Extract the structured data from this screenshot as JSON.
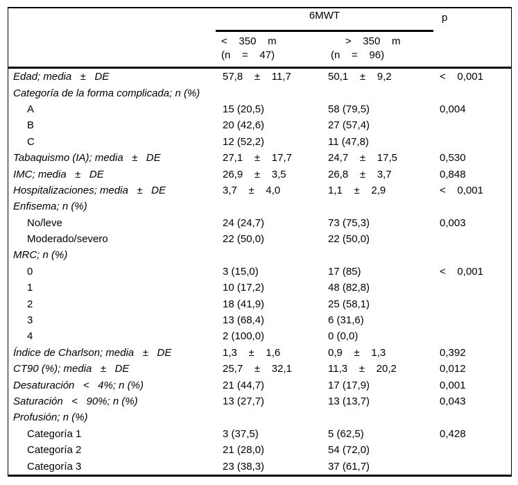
{
  "table": {
    "header": {
      "group_label": "6MWT",
      "p_label": "p",
      "col1": "<    350    m\n(n    =    47)",
      "col2": "     >    350    m\n(n    =    96)"
    },
    "rows": [
      {
        "label": "Edad; media   ±   DE",
        "sub": false,
        "col1": "57,8    ±    11,7",
        "col2": "50,1    ±    9,2",
        "p": "<    0,001"
      },
      {
        "label": "Categoría de la forma complicada; n (%)",
        "sub": false,
        "col1": "",
        "col2": "",
        "p": ""
      },
      {
        "label": "A",
        "sub": true,
        "col1": "15 (20,5)",
        "col2": "58 (79,5)",
        "p": "0,004"
      },
      {
        "label": "B",
        "sub": true,
        "col1": "20 (42,6)",
        "col2": "27 (57,4)",
        "p": ""
      },
      {
        "label": "C",
        "sub": true,
        "col1": "12 (52,2)",
        "col2": "11 (47,8)",
        "p": ""
      },
      {
        "label": "Tabaquismo (IA); media   ±   DE",
        "sub": false,
        "col1": "27,1    ±    17,7",
        "col2": "24,7    ±    17,5",
        "p": "0,530"
      },
      {
        "label": "IMC; media   ±   DE",
        "sub": false,
        "col1": "26,9    ±    3,5",
        "col2": "26,8    ±    3,7",
        "p": "0,848"
      },
      {
        "label": "Hospitalizaciones; media   ±   DE",
        "sub": false,
        "col1": "3,7    ±    4,0",
        "col2": "1,1    ±    2,9",
        "p": "<    0,001"
      },
      {
        "label": "Enfisema; n (%)",
        "sub": false,
        "col1": "",
        "col2": "",
        "p": ""
      },
      {
        "label": "No/leve",
        "sub": true,
        "col1": "24 (24,7)",
        "col2": "73 (75,3)",
        "p": "0,003"
      },
      {
        "label": "Moderado/severo",
        "sub": true,
        "col1": "22 (50,0)",
        "col2": "22 (50,0)",
        "p": ""
      },
      {
        "label": "MRC; n (%)",
        "sub": false,
        "col1": "",
        "col2": "",
        "p": ""
      },
      {
        "label": "0",
        "sub": true,
        "col1": "3 (15,0)",
        "col2": "17 (85)",
        "p": "<    0,001"
      },
      {
        "label": "1",
        "sub": true,
        "col1": "10 (17,2)",
        "col2": "48 (82,8)",
        "p": ""
      },
      {
        "label": "2",
        "sub": true,
        "col1": "18 (41,9)",
        "col2": "25 (58,1)",
        "p": ""
      },
      {
        "label": "3",
        "sub": true,
        "col1": "13 (68,4)",
        "col2": "6 (31,6)",
        "p": ""
      },
      {
        "label": "4",
        "sub": true,
        "col1": "2 (100,0)",
        "col2": "0 (0,0)",
        "p": ""
      },
      {
        "label": "Índice de Charlson; media   ±   DE",
        "sub": false,
        "col1": "1,3    ±    1,6",
        "col2": "0,9    ±    1,3",
        "p": "0,392"
      },
      {
        "label": "CT90 (%); media   ±   DE",
        "sub": false,
        "col1": "25,7    ±    32,1",
        "col2": "11,3    ±    20,2",
        "p": "0,012"
      },
      {
        "label": "Desaturación   <   4%; n (%)",
        "sub": false,
        "col1": "21 (44,7)",
        "col2": "17 (17,9)",
        "p": "0,001"
      },
      {
        "label": "Saturación   <   90%; n (%)",
        "sub": false,
        "col1": "13 (27,7)",
        "col2": "13 (13,7)",
        "p": "0,043"
      },
      {
        "label": "Profusión; n (%)",
        "sub": false,
        "col1": "",
        "col2": "",
        "p": ""
      },
      {
        "label": "Categoría 1",
        "sub": true,
        "col1": "3 (37,5)",
        "col2": "5 (62,5)",
        "p": "0,428"
      },
      {
        "label": "Categoría 2",
        "sub": true,
        "col1": "21 (28,0)",
        "col2": "54 (72,0)",
        "p": ""
      },
      {
        "label": "Categoría 3",
        "sub": true,
        "col1": "23 (38,3)",
        "col2": "37 (61,7)",
        "p": ""
      }
    ]
  }
}
